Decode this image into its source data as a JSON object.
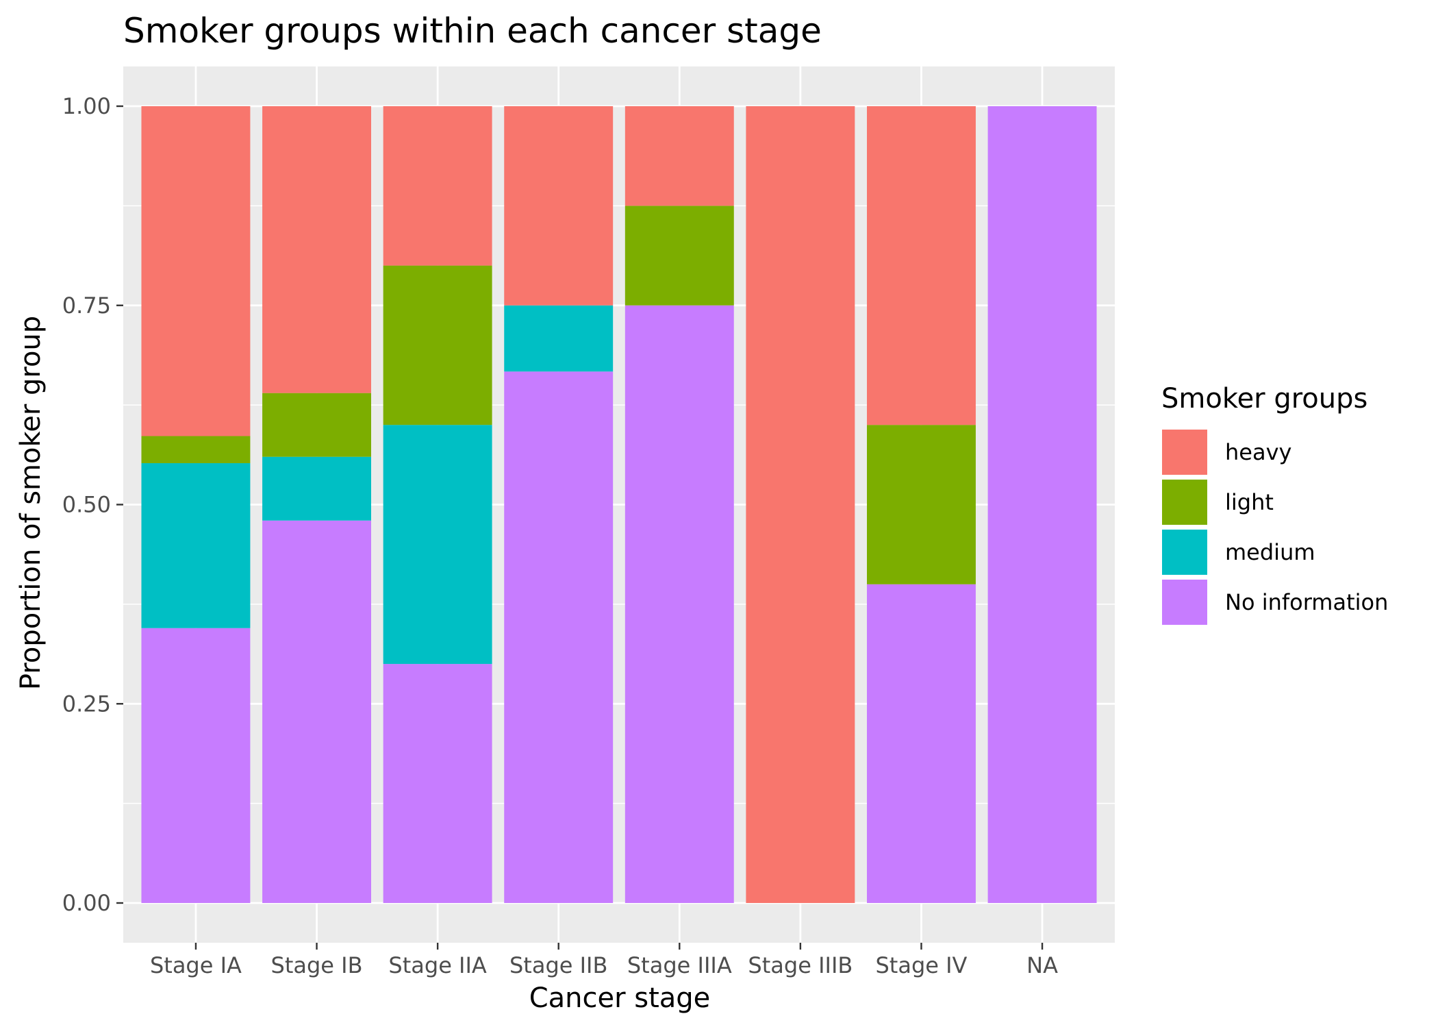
{
  "chart_data": {
    "type": "bar",
    "stacked": true,
    "title": "Smoker groups within each cancer stage",
    "xlabel": "Cancer stage",
    "ylabel": "Proportion of smoker group",
    "ylim": [
      0,
      1
    ],
    "yticks": [
      "0.00",
      "0.25",
      "0.50",
      "0.75",
      "1.00"
    ],
    "ytick_values": [
      0,
      0.25,
      0.5,
      0.75,
      1.0
    ],
    "categories": [
      "Stage IA",
      "Stage IB",
      "Stage IIA",
      "Stage IIB",
      "Stage IIIA",
      "Stage IIIB",
      "Stage IV",
      "NA"
    ],
    "series": [
      {
        "name": "No information",
        "color": "#C77CFF",
        "values": [
          0.345,
          0.48,
          0.3,
          0.667,
          0.75,
          0.0,
          0.4,
          1.0
        ]
      },
      {
        "name": "medium",
        "color": "#00BFC4",
        "values": [
          0.207,
          0.08,
          0.3,
          0.083,
          0.0,
          0.0,
          0.0,
          0.0
        ]
      },
      {
        "name": "light",
        "color": "#7CAE00",
        "values": [
          0.034,
          0.08,
          0.2,
          0.0,
          0.125,
          0.0,
          0.2,
          0.0
        ]
      },
      {
        "name": "heavy",
        "color": "#F8766D",
        "values": [
          0.414,
          0.36,
          0.2,
          0.25,
          0.125,
          1.0,
          0.4,
          0.0
        ]
      }
    ],
    "legend": {
      "title": "Smoker groups",
      "position": "right",
      "items": [
        "heavy",
        "light",
        "medium",
        "No information"
      ]
    },
    "grid": true,
    "panel_background": "#EBEBEB"
  }
}
